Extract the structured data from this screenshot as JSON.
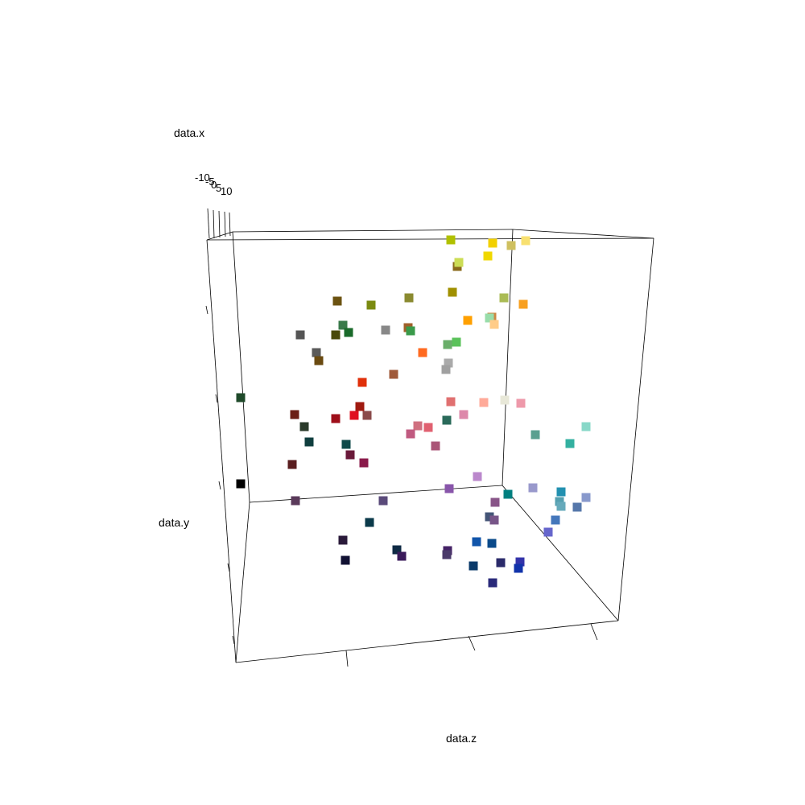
{
  "chart_data": {
    "type": "scatter",
    "subtype": "3d-scatter",
    "axes": {
      "x": {
        "label": "data.x",
        "ticks": [
          "-10",
          "-5",
          "0",
          "5",
          "10"
        ]
      },
      "y": {
        "label": "data.y"
      },
      "z": {
        "label": "data.z"
      }
    },
    "grid": false,
    "legend": "none",
    "marker": "square",
    "points": [
      {
        "color": "#000000"
      },
      {
        "color": "#1f4a2a"
      },
      {
        "color": "#5a1e20"
      },
      {
        "color": "#6b1f16"
      },
      {
        "color": "#2a3a2a"
      },
      {
        "color": "#0f3e3e"
      },
      {
        "color": "#5a3a5a"
      },
      {
        "color": "#2a1a3a"
      },
      {
        "color": "#111133"
      },
      {
        "color": "#0b3a4a"
      },
      {
        "color": "#5a4a7a"
      },
      {
        "color": "#0f2a44"
      },
      {
        "color": "#3a1a5a"
      },
      {
        "color": "#8a1a4a"
      },
      {
        "color": "#6a1a3a"
      },
      {
        "color": "#9e0f1a"
      },
      {
        "color": "#e01020"
      },
      {
        "color": "#a01a10"
      },
      {
        "color": "#8a4a4a"
      },
      {
        "color": "#0f4a4a"
      },
      {
        "color": "#555555"
      },
      {
        "color": "#5a5a5a"
      },
      {
        "color": "#6a4a10"
      },
      {
        "color": "#6b5210"
      },
      {
        "color": "#4a4a0a"
      },
      {
        "color": "#3a7a4a"
      },
      {
        "color": "#1a6a2a"
      },
      {
        "color": "#7a8a10"
      },
      {
        "color": "#888888"
      },
      {
        "color": "#8a8a30"
      },
      {
        "color": "#a0602a"
      },
      {
        "color": "#3a9a4a"
      },
      {
        "color": "#e0300a"
      },
      {
        "color": "#a05a3a"
      },
      {
        "color": "#ff6a20"
      },
      {
        "color": "#6aae6a"
      },
      {
        "color": "#5ac25a"
      },
      {
        "color": "#aaaaaa"
      },
      {
        "color": "#a0a0a0"
      },
      {
        "color": "#8a6a1a"
      },
      {
        "color": "#a09000"
      },
      {
        "color": "#b0c000"
      },
      {
        "color": "#ccdd55"
      },
      {
        "color": "#f2d000"
      },
      {
        "color": "#f0d800"
      },
      {
        "color": "#cfc060"
      },
      {
        "color": "#f8e070"
      },
      {
        "color": "#ffa000"
      },
      {
        "color": "#aabb55"
      },
      {
        "color": "#f8a020"
      },
      {
        "color": "#cc8844"
      },
      {
        "color": "#99ddaa"
      },
      {
        "color": "#ffcc88"
      },
      {
        "color": "#e07070"
      },
      {
        "color": "#ffaa99"
      },
      {
        "color": "#e8e8d8"
      },
      {
        "color": "#ee99aa"
      },
      {
        "color": "#dd88aa"
      },
      {
        "color": "#d07080"
      },
      {
        "color": "#e06070"
      },
      {
        "color": "#2a6a5a"
      },
      {
        "color": "#c05a80"
      },
      {
        "color": "#aa5577"
      },
      {
        "color": "#5aa090"
      },
      {
        "color": "#33b0a0"
      },
      {
        "color": "#88d8c8"
      },
      {
        "color": "#bb88cc"
      },
      {
        "color": "#8855aa"
      },
      {
        "color": "#885588"
      },
      {
        "color": "#008080"
      },
      {
        "color": "#9999cc"
      },
      {
        "color": "#2290b0"
      },
      {
        "color": "#55a0b0"
      },
      {
        "color": "#66aabb"
      },
      {
        "color": "#8899cc"
      },
      {
        "color": "#5577aa"
      },
      {
        "color": "#4477bb"
      },
      {
        "color": "#6666cc"
      },
      {
        "color": "#445577"
      },
      {
        "color": "#775588"
      },
      {
        "color": "#1155aa"
      },
      {
        "color": "#0a4a8a"
      },
      {
        "color": "#442266"
      },
      {
        "color": "#4a3a6a"
      },
      {
        "color": "#0a3a6a"
      },
      {
        "color": "#2a2a6a"
      },
      {
        "color": "#3333aa"
      },
      {
        "color": "#1133aa"
      },
      {
        "color": "#2a2a7a"
      }
    ]
  }
}
